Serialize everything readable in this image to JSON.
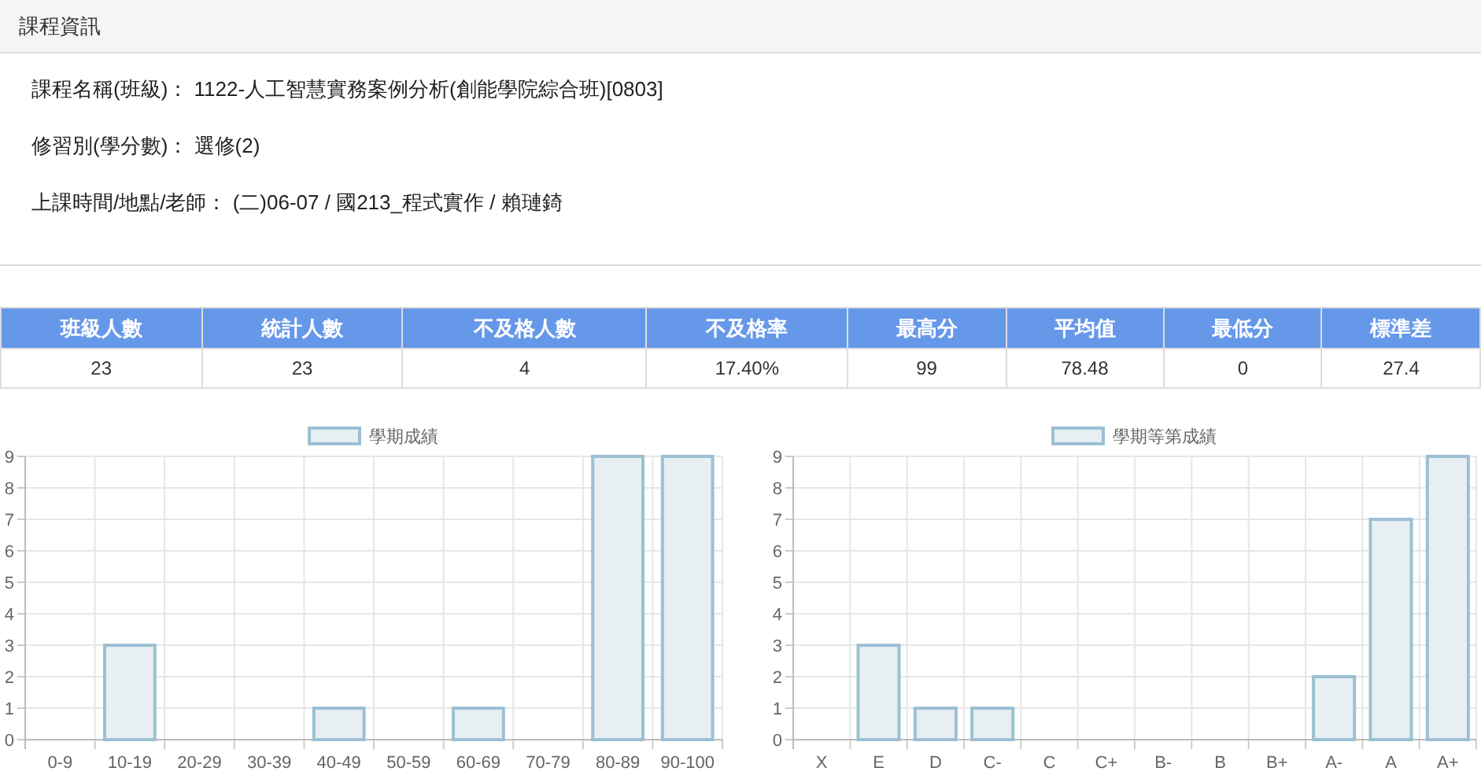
{
  "chart_data": [
    {
      "type": "other",
      "title": "課程資訊",
      "annotations": [
        "課程名稱(班級)： 1122-人工智慧實務案例分析(創能學院綜合班)[0803]",
        "修習別(學分數)： 選修(2)",
        "上課時間/地點/老師： (二)06-07 / 國213_程式實作 / 賴璉錡"
      ]
    },
    {
      "type": "other",
      "categories": [
        "班級人數",
        "統計人數",
        "不及格人數",
        "不及格率",
        "最高分",
        "平均值",
        "最低分",
        "標準差"
      ],
      "value_labels": [
        "23",
        "23",
        "4",
        "17.40%",
        "99",
        "78.48",
        "0",
        "27.4"
      ]
    },
    {
      "type": "bar",
      "categories": [
        "0-9",
        "10-19",
        "20-29",
        "30-39",
        "40-49",
        "50-59",
        "60-69",
        "70-79",
        "80-89",
        "90-100"
      ],
      "series": [
        {
          "name": "學期成績",
          "color": "#e7eff3",
          "values": [
            0,
            3,
            0,
            0,
            1,
            0,
            1,
            0,
            9,
            9
          ]
        }
      ],
      "ylim": [
        0,
        9
      ],
      "yticks": [
        0,
        1,
        2,
        3,
        4,
        5,
        6,
        7,
        8,
        9
      ],
      "grid": true,
      "legend": "top"
    },
    {
      "type": "bar",
      "categories": [
        "X",
        "E",
        "D",
        "C-",
        "C",
        "C+",
        "B-",
        "B",
        "B+",
        "A-",
        "A",
        "A+"
      ],
      "series": [
        {
          "name": "學期等第成績",
          "color": "#e7eff3",
          "values": [
            0,
            3,
            1,
            1,
            0,
            0,
            0,
            0,
            0,
            2,
            7,
            9
          ]
        }
      ],
      "ylim": [
        0,
        9
      ],
      "yticks": [
        0,
        1,
        2,
        3,
        4,
        5,
        6,
        7,
        8,
        9
      ],
      "grid": true,
      "legend": "top"
    }
  ]
}
